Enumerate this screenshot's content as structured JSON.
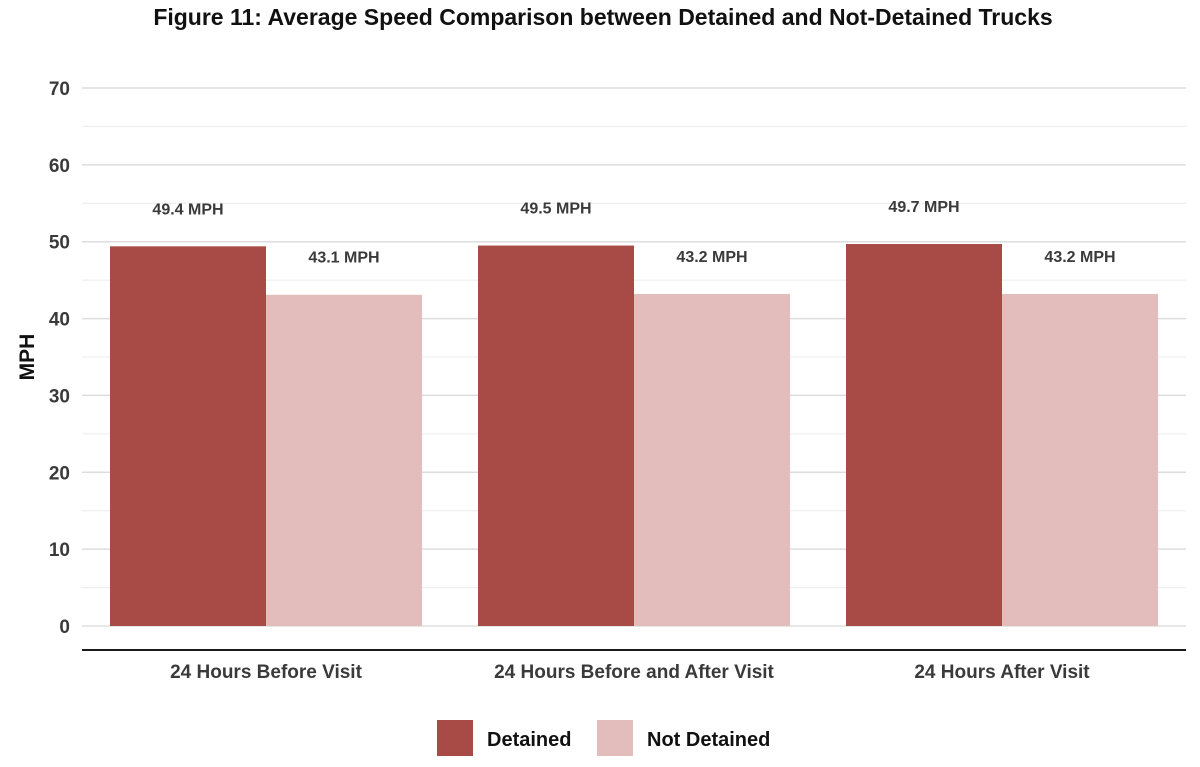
{
  "chart_data": {
    "type": "bar",
    "title": "Figure 11: Average Speed Comparison between Detained and Not-Detained Trucks",
    "xlabel": "",
    "ylabel": "MPH",
    "ylim": [
      0,
      70
    ],
    "yticks": [
      0,
      10,
      20,
      30,
      40,
      50,
      60,
      70
    ],
    "grid": true,
    "legend_position": "bottom",
    "categories": [
      "24 Hours Before Visit",
      "24 Hours Before and After Visit",
      "24 Hours After Visit"
    ],
    "series": [
      {
        "name": "Detained",
        "color": "#a84a45",
        "values": [
          49.4,
          49.5,
          49.7
        ],
        "labels": [
          "49.4 MPH",
          "49.5 MPH",
          "49.7 MPH"
        ]
      },
      {
        "name": "Not Detained",
        "color": "#e3bdbb",
        "values": [
          43.1,
          43.2,
          43.2
        ],
        "labels": [
          "43.1 MPH",
          "43.2 MPH",
          "43.2 MPH"
        ]
      }
    ]
  }
}
